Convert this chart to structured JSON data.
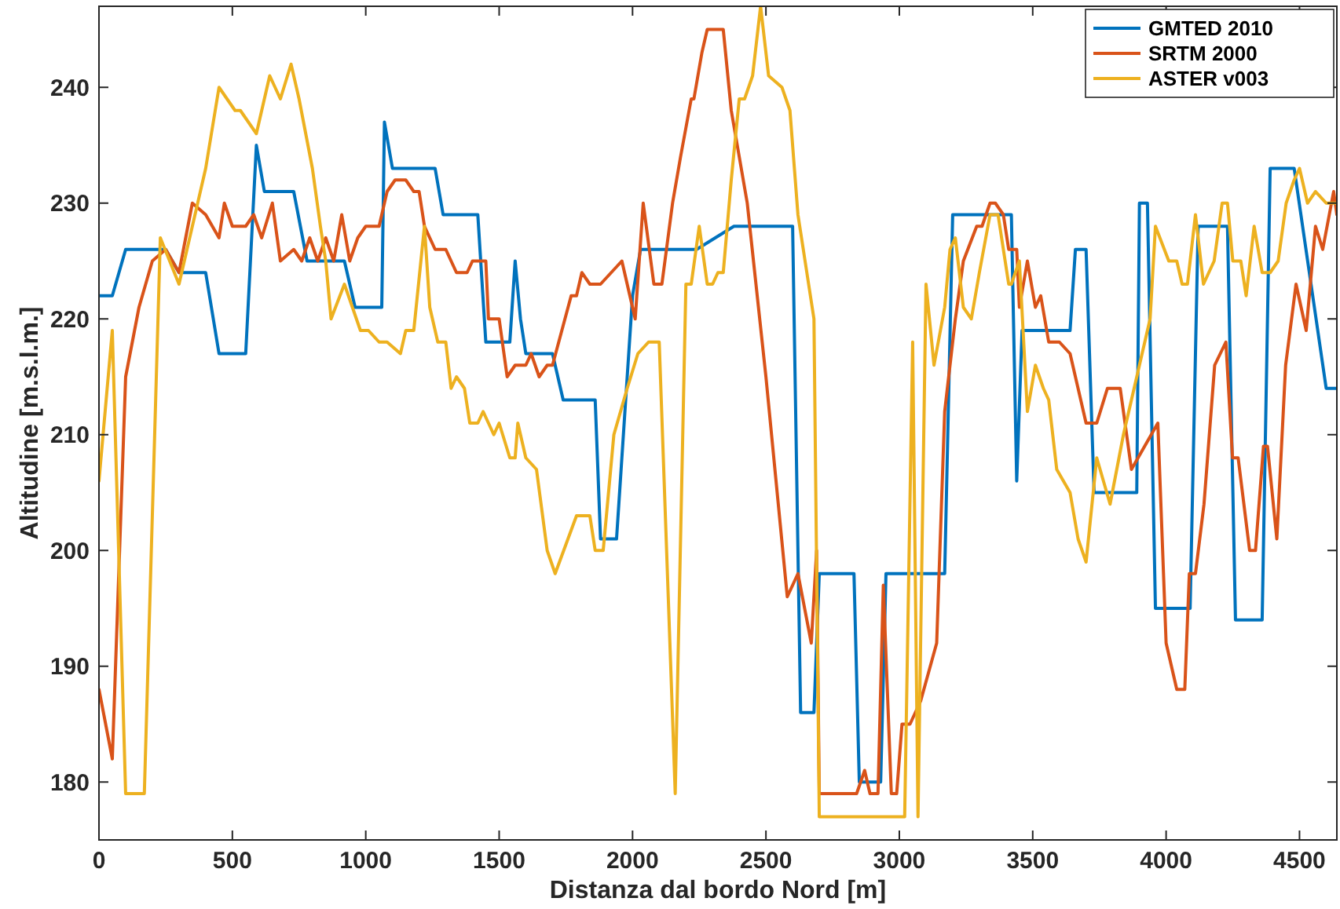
{
  "chart_data": {
    "type": "line",
    "xlabel": "Distanza dal bordo Nord [m]",
    "ylabel": "Altitudine [m.s.l.m.]",
    "xlim": [
      0,
      4640
    ],
    "ylim": [
      175,
      247
    ],
    "xticks": [
      0,
      500,
      1000,
      1500,
      2000,
      2500,
      3000,
      3500,
      4000,
      4500
    ],
    "yticks": [
      180,
      190,
      200,
      210,
      220,
      230,
      240
    ],
    "grid": false,
    "legend": "top right",
    "line_style": "solid",
    "marker": "none",
    "series": [
      {
        "name": "GMTED 2010",
        "color": "#0072bd",
        "x": [
          0,
          50,
          100,
          250,
          300,
          400,
          450,
          550,
          590,
          620,
          730,
          780,
          920,
          960,
          1060,
          1070,
          1100,
          1260,
          1290,
          1420,
          1450,
          1540,
          1560,
          1580,
          1600,
          1700,
          1740,
          1860,
          1880,
          1940,
          2000,
          2030,
          2200,
          2240,
          2380,
          2420,
          2600,
          2630,
          2680,
          2700,
          2830,
          2850,
          2930,
          2950,
          3170,
          3200,
          3420,
          3440,
          3460,
          3640,
          3660,
          3700,
          3730,
          3890,
          3900,
          3930,
          3960,
          4090,
          4120,
          4230,
          4260,
          4360,
          4390,
          4480,
          4600,
          4640
        ],
        "values": [
          222,
          222,
          226,
          226,
          224,
          224,
          217,
          217,
          235,
          231,
          231,
          225,
          225,
          221,
          221,
          237,
          233,
          233,
          229,
          229,
          218,
          218,
          225,
          220,
          217,
          217,
          213,
          213,
          201,
          201,
          222,
          226,
          226,
          226,
          228,
          228,
          228,
          186,
          186,
          198,
          198,
          180,
          180,
          198,
          198,
          229,
          229,
          206,
          219,
          219,
          226,
          226,
          205,
          205,
          230,
          230,
          195,
          195,
          228,
          228,
          194,
          194,
          233,
          233,
          214,
          214
        ]
      },
      {
        "name": "SRTM 2000",
        "color": "#d95319",
        "x": [
          0,
          50,
          100,
          150,
          200,
          250,
          300,
          350,
          400,
          450,
          470,
          500,
          550,
          580,
          610,
          650,
          680,
          730,
          760,
          790,
          820,
          850,
          880,
          910,
          940,
          970,
          1000,
          1050,
          1080,
          1110,
          1150,
          1180,
          1200,
          1220,
          1260,
          1300,
          1340,
          1380,
          1400,
          1450,
          1460,
          1500,
          1530,
          1560,
          1600,
          1620,
          1650,
          1680,
          1700,
          1770,
          1790,
          1810,
          1840,
          1880,
          1960,
          2010,
          2040,
          2080,
          2110,
          2150,
          2180,
          2220,
          2230,
          2260,
          2280,
          2340,
          2370,
          2430,
          2500,
          2580,
          2620,
          2670,
          2690,
          2700,
          2840,
          2870,
          2890,
          2920,
          2940,
          2970,
          2990,
          3010,
          3040,
          3080,
          3140,
          3170,
          3210,
          3240,
          3290,
          3310,
          3340,
          3360,
          3390,
          3410,
          3440,
          3450,
          3480,
          3510,
          3530,
          3560,
          3600,
          3640,
          3700,
          3740,
          3780,
          3828,
          3870,
          3969,
          4000,
          4040,
          4070,
          4087,
          4110,
          4142,
          4182,
          4224,
          4249,
          4270,
          4313,
          4335,
          4365,
          4380,
          4415,
          4448,
          4487,
          4525,
          4560,
          4587,
          4628,
          4640
        ],
        "values": [
          188,
          182,
          215,
          221,
          225,
          226,
          224,
          230,
          229,
          227,
          230,
          228,
          228,
          229,
          227,
          230,
          225,
          226,
          225,
          227,
          225,
          227,
          225,
          229,
          225,
          227,
          228,
          228,
          231,
          232,
          232,
          231,
          231,
          228,
          226,
          226,
          224,
          224,
          225,
          225,
          220,
          220,
          215,
          216,
          216,
          217,
          215,
          216,
          216,
          222,
          222,
          224,
          223,
          223,
          225,
          220,
          230,
          223,
          223,
          230,
          234,
          239,
          239,
          243,
          245,
          245,
          238,
          230,
          215,
          196,
          198,
          192,
          200,
          179,
          179,
          181,
          179,
          179,
          197,
          179,
          179,
          185,
          185,
          187,
          192,
          212,
          220,
          225,
          228,
          228,
          230,
          230,
          229,
          226,
          226,
          221,
          225,
          221,
          222,
          218,
          218,
          217,
          211,
          211,
          214,
          214,
          207,
          211,
          192,
          188,
          188,
          198,
          198,
          204,
          216,
          218,
          208,
          208,
          200,
          200,
          209,
          209,
          201,
          216,
          223,
          219,
          228,
          226,
          231,
          229
        ]
      },
      {
        "name": "ASTER v003",
        "color": "#edb120",
        "x": [
          0,
          50,
          100,
          170,
          230,
          300,
          330,
          400,
          450,
          510,
          530,
          590,
          640,
          680,
          720,
          750,
          800,
          830,
          850,
          870,
          920,
          950,
          980,
          1010,
          1050,
          1080,
          1130,
          1150,
          1180,
          1220,
          1240,
          1270,
          1300,
          1320,
          1340,
          1370,
          1390,
          1420,
          1440,
          1460,
          1480,
          1500,
          1540,
          1560,
          1570,
          1600,
          1640,
          1680,
          1710,
          1790,
          1840,
          1860,
          1890,
          1930,
          1980,
          2020,
          2060,
          2100,
          2160,
          2200,
          2220,
          2250,
          2280,
          2300,
          2320,
          2340,
          2370,
          2400,
          2420,
          2450,
          2480,
          2510,
          2560,
          2590,
          2620,
          2680,
          2700,
          3020,
          3050,
          3070,
          3100,
          3130,
          3170,
          3190,
          3210,
          3240,
          3270,
          3300,
          3340,
          3370,
          3410,
          3420,
          3450,
          3480,
          3510,
          3540,
          3560,
          3590,
          3640,
          3670,
          3700,
          3740,
          3790,
          3840,
          3900,
          3940,
          3960,
          4010,
          4040,
          4060,
          4080,
          4110,
          4140,
          4180,
          4210,
          4230,
          4250,
          4280,
          4300,
          4330,
          4360,
          4390,
          4420,
          4450,
          4480,
          4500,
          4530,
          4560,
          4600,
          4640
        ],
        "values": [
          206,
          219,
          179,
          179,
          227,
          223,
          226,
          233,
          240,
          238,
          238,
          236,
          241,
          239,
          242,
          239,
          233,
          228,
          225,
          220,
          223,
          221,
          219,
          219,
          218,
          218,
          217,
          219,
          219,
          228,
          221,
          218,
          218,
          214,
          215,
          214,
          211,
          211,
          212,
          211,
          210,
          211,
          208,
          208,
          211,
          208,
          207,
          200,
          198,
          203,
          203,
          200,
          200,
          210,
          214,
          217,
          218,
          218,
          179,
          223,
          223,
          228,
          223,
          223,
          224,
          224,
          232,
          239,
          239,
          241,
          247,
          241,
          240,
          238,
          229,
          220,
          177,
          177,
          218,
          177,
          223,
          216,
          221,
          226,
          227,
          221,
          220,
          224,
          229,
          229,
          223,
          223,
          225,
          212,
          216,
          214,
          213,
          207,
          205,
          201,
          199,
          208,
          204,
          210,
          216,
          220,
          228,
          225,
          225,
          223,
          223,
          229,
          223,
          225,
          230,
          230,
          225,
          225,
          222,
          228,
          224,
          224,
          225,
          230,
          232,
          233,
          230,
          231,
          230,
          230
        ]
      }
    ]
  }
}
